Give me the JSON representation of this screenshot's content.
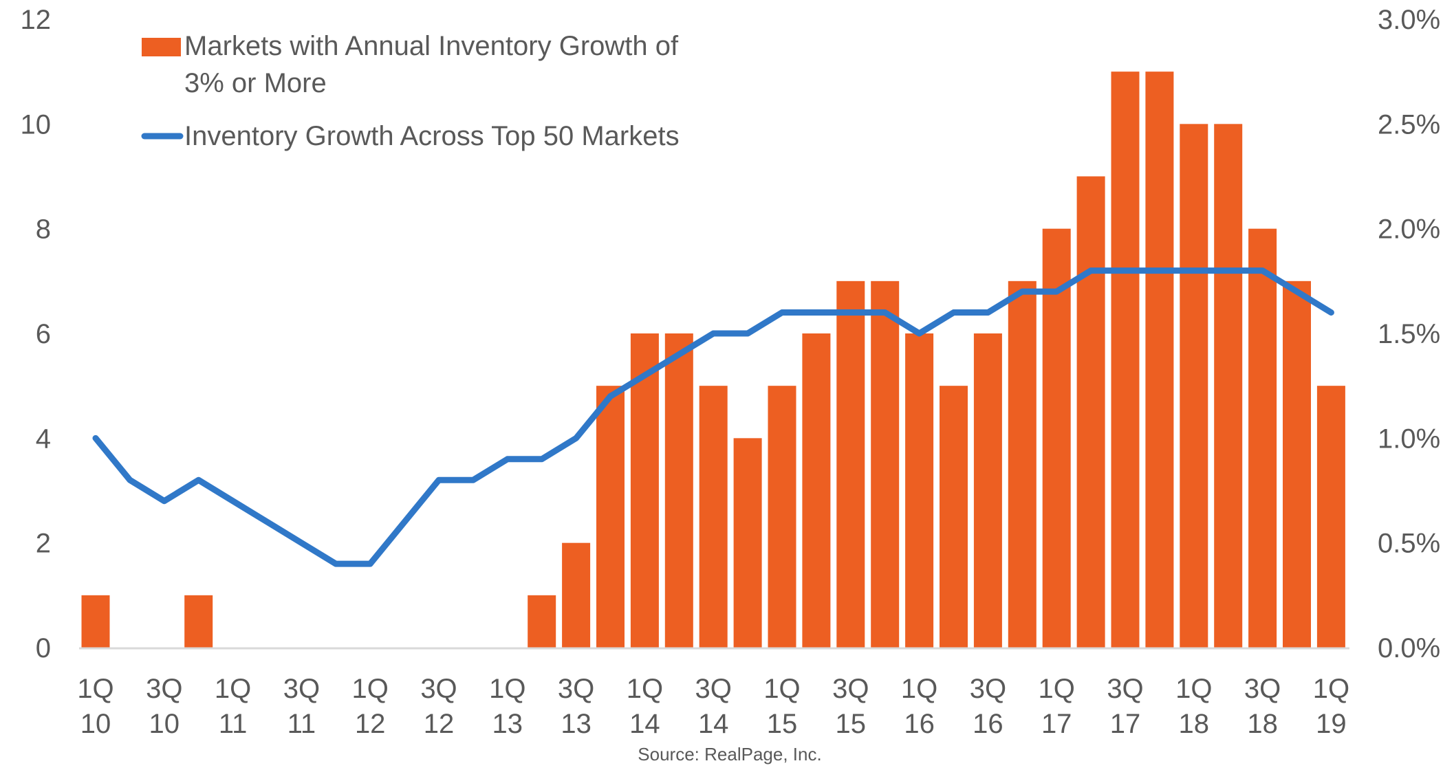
{
  "chart_data": {
    "type": "bar+line",
    "categories": [
      "1Q10",
      "2Q10",
      "3Q10",
      "4Q10",
      "1Q11",
      "2Q11",
      "3Q11",
      "4Q11",
      "1Q12",
      "2Q12",
      "3Q12",
      "4Q12",
      "1Q13",
      "2Q13",
      "3Q13",
      "4Q13",
      "1Q14",
      "2Q14",
      "3Q14",
      "4Q14",
      "1Q15",
      "2Q15",
      "3Q15",
      "4Q15",
      "1Q16",
      "2Q16",
      "3Q16",
      "4Q16",
      "1Q17",
      "2Q17",
      "3Q17",
      "4Q17",
      "1Q18",
      "2Q18",
      "3Q18",
      "4Q18",
      "1Q19"
    ],
    "tick_labels": [
      {
        "index": 0,
        "q": "1Q",
        "y": "10"
      },
      {
        "index": 2,
        "q": "3Q",
        "y": "10"
      },
      {
        "index": 4,
        "q": "1Q",
        "y": "11"
      },
      {
        "index": 6,
        "q": "3Q",
        "y": "11"
      },
      {
        "index": 8,
        "q": "1Q",
        "y": "12"
      },
      {
        "index": 10,
        "q": "3Q",
        "y": "12"
      },
      {
        "index": 12,
        "q": "1Q",
        "y": "13"
      },
      {
        "index": 14,
        "q": "3Q",
        "y": "13"
      },
      {
        "index": 16,
        "q": "1Q",
        "y": "14"
      },
      {
        "index": 18,
        "q": "3Q",
        "y": "14"
      },
      {
        "index": 20,
        "q": "1Q",
        "y": "15"
      },
      {
        "index": 22,
        "q": "3Q",
        "y": "15"
      },
      {
        "index": 24,
        "q": "1Q",
        "y": "16"
      },
      {
        "index": 26,
        "q": "3Q",
        "y": "16"
      },
      {
        "index": 28,
        "q": "1Q",
        "y": "17"
      },
      {
        "index": 30,
        "q": "3Q",
        "y": "17"
      },
      {
        "index": 32,
        "q": "1Q",
        "y": "18"
      },
      {
        "index": 34,
        "q": "3Q",
        "y": "18"
      },
      {
        "index": 36,
        "q": "1Q",
        "y": "19"
      }
    ],
    "series": [
      {
        "name": "Markets with Annual Inventory Growth of 3% or More",
        "name_lines": [
          "Markets with Annual Inventory Growth of",
          "3% or More"
        ],
        "type": "bar",
        "axis": "left",
        "color": "#ED5F22",
        "values": [
          1,
          0,
          0,
          1,
          0,
          0,
          0,
          0,
          0,
          0,
          0,
          0,
          0,
          1,
          2,
          5,
          6,
          6,
          5,
          4,
          5,
          6,
          7,
          7,
          6,
          5,
          6,
          7,
          8,
          9,
          11,
          11,
          10,
          10,
          8,
          7,
          5
        ]
      },
      {
        "name": "Inventory Growth Across Top 50 Markets",
        "type": "line",
        "axis": "right",
        "color": "#3078C8",
        "values": [
          1.0,
          0.8,
          0.7,
          0.8,
          0.7,
          0.6,
          0.5,
          0.4,
          0.4,
          0.6,
          0.8,
          0.8,
          0.9,
          0.9,
          1.0,
          1.2,
          1.3,
          1.4,
          1.5,
          1.5,
          1.6,
          1.6,
          1.6,
          1.6,
          1.5,
          1.6,
          1.6,
          1.7,
          1.7,
          1.8,
          1.8,
          1.8,
          1.8,
          1.8,
          1.8,
          1.7,
          1.6
        ]
      }
    ],
    "left_axis": {
      "ylim": [
        0,
        12
      ],
      "ticks": [
        "0",
        "2",
        "4",
        "6",
        "8",
        "10",
        "12"
      ]
    },
    "right_axis": {
      "ylim": [
        0,
        3.0
      ],
      "unit": "%",
      "ticks": [
        "0.0%",
        "0.5%",
        "1.0%",
        "1.5%",
        "2.0%",
        "2.5%",
        "3.0%"
      ]
    },
    "grid": false,
    "legend_position": "top-left",
    "source": "Source: RealPage, Inc."
  }
}
